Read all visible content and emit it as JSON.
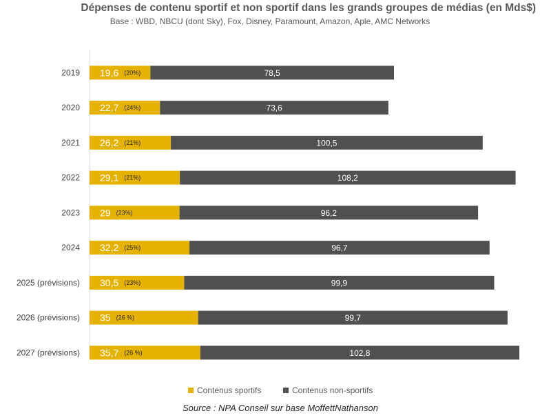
{
  "title": "Dépenses de contenu sportif et non sportif dans les grands groupes de médias (en Mds$)",
  "subtitle": "Base : WBD, NBCU (dont Sky), Fox, Disney, Paramount, Amazon, Aple, AMC Networks",
  "source": "Source : NPA Conseil sur base MoffettNathanson",
  "colors": {
    "sport": "#E5B200",
    "nonsport": "#505050",
    "axis": "#D9D9D9"
  },
  "chart_data": {
    "type": "bar",
    "orientation": "horizontal",
    "stacked": true,
    "title": "Dépenses de contenu sportif et non sportif dans les grands groupes de médias (en Mds$)",
    "categories": [
      "2019",
      "2020",
      "2021",
      "2022",
      "2023",
      "2024",
      "2025 (prévisions)",
      "2026 (prévisions)",
      "2027 (prévisions)"
    ],
    "series": [
      {
        "name": "Contenus sportifs",
        "values": [
          19.6,
          22.7,
          26.2,
          29.1,
          29,
          32.2,
          30.5,
          35,
          35.7
        ],
        "labels": [
          "19,6",
          "22,7",
          "26,2",
          "29,1",
          "29",
          "32,2",
          "30,5",
          "35",
          "35,7"
        ],
        "shares": [
          "(20%)",
          "(24%)",
          "(21%)",
          "(21%)",
          "(23%)",
          "(25%)",
          "(23%)",
          "(26 %)",
          "(26 %)"
        ]
      },
      {
        "name": "Contenus non-sportifs",
        "values": [
          78.5,
          73.6,
          100.5,
          108.2,
          96.2,
          96.7,
          99.9,
          99.7,
          102.8
        ],
        "labels": [
          "78,5",
          "73,6",
          "100,5",
          "108,2",
          "96,2",
          "96,7",
          "99,9",
          "99,7",
          "102,8"
        ]
      }
    ],
    "xlim": [
      0,
      138.5
    ],
    "legend": "bottom-center"
  }
}
